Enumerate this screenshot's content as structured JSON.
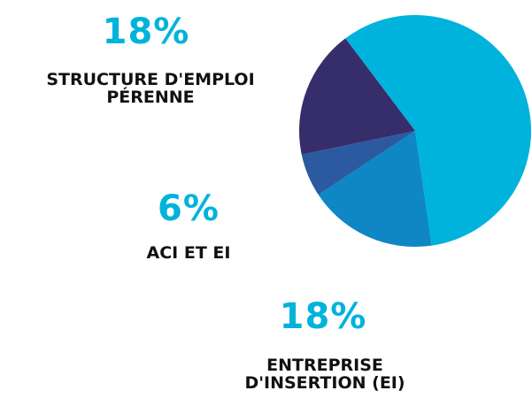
{
  "chart_data": {
    "type": "pie",
    "categories": [
      null,
      "ENTREPRISE D'INSERTION (EI)",
      "ACI ET EI",
      "STRUCTURE D'EMPLOI PÉRENNE"
    ],
    "values": [
      58,
      18,
      6,
      18
    ],
    "value_labels": [
      null,
      "18%",
      "6%",
      "18%"
    ],
    "colors": [
      "#00b3dc",
      "#0e87c4",
      "#2b5aa0",
      "#362d6b"
    ]
  }
}
